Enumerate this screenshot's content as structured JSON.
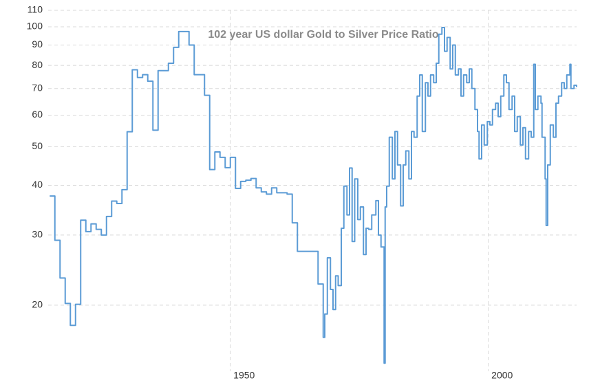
{
  "chart_data": {
    "type": "line",
    "title": "102 year US dollar Gold to Silver Price Ratio",
    "color": "#5b9bd5",
    "step": true,
    "log_y": true,
    "grid": true,
    "xlim": [
      1914.7,
      2017.1
    ],
    "xticks": [
      1950,
      2000
    ],
    "ylim": [
      13.65,
      110
    ],
    "yticks": [
      20,
      30,
      40,
      50,
      60,
      70,
      80,
      90,
      100,
      110
    ],
    "x": [
      1915,
      1916,
      1917,
      1918,
      1919,
      1920,
      1921,
      1922,
      1923,
      1924,
      1925,
      1926,
      1927,
      1928,
      1929,
      1930,
      1931,
      1932,
      1933,
      1934,
      1935,
      1936,
      1937,
      1938,
      1939,
      1940,
      1941,
      1942,
      1943,
      1944,
      1945,
      1946,
      1947,
      1948,
      1949,
      1950,
      1951,
      1952,
      1953,
      1954,
      1955,
      1956,
      1957,
      1958,
      1959,
      1960,
      1961,
      1962,
      1963,
      1964,
      1965,
      1966,
      1967,
      1968.0,
      1968.3,
      1968.8,
      1969.4,
      1969.9,
      1970.4,
      1970.9,
      1971.5,
      1972.0,
      1972.6,
      1973.1,
      1973.6,
      1974.1,
      1974.7,
      1975.2,
      1975.8,
      1976.3,
      1976.8,
      1977.4,
      1978.2,
      1978.7,
      1979.2,
      1979.8,
      1980.0,
      1980.3,
      1980.8,
      1981.4,
      1981.9,
      1982.4,
      1983.0,
      1983.5,
      1984.0,
      1984.6,
      1985.1,
      1985.6,
      1986.2,
      1986.7,
      1987.2,
      1987.8,
      1988.3,
      1988.8,
      1989.4,
      1989.9,
      1990.4,
      1991.0,
      1991.5,
      1992.0,
      1992.6,
      1993.1,
      1993.6,
      1994.2,
      1994.7,
      1995.2,
      1995.8,
      1996.3,
      1996.8,
      1997.4,
      1997.9,
      1998.2,
      1998.7,
      1999.2,
      1999.8,
      2000.3,
      2000.8,
      2001.4,
      2001.9,
      2002.4,
      2003.0,
      2003.5,
      2004.0,
      2004.6,
      2005.1,
      2005.6,
      2006.2,
      2006.7,
      2007.2,
      2007.8,
      2008.3,
      2008.8,
      2009.1,
      2009.6,
      2010.2,
      2010.4,
      2011.0,
      2011.2,
      2011.5,
      2012.0,
      2012.6,
      2013.1,
      2013.6,
      2014.2,
      2014.7,
      2015.2,
      2015.8,
      2016.0,
      2016.6,
      2017.1
    ],
    "values": [
      37.6,
      29.1,
      23.4,
      20.2,
      17.8,
      20.1,
      32.7,
      30.6,
      32.0,
      31.0,
      30.0,
      33.4,
      36.5,
      36.0,
      39.0,
      54.5,
      78,
      74.6,
      75.8,
      73,
      55,
      77.6,
      77.6,
      81,
      88.8,
      97.3,
      97.3,
      90,
      75.8,
      75.8,
      67.3,
      43.8,
      48.5,
      47,
      44.3,
      47,
      39.3,
      40.9,
      41.2,
      41.6,
      39.4,
      38.5,
      38.0,
      39.4,
      38.3,
      38.3,
      38.0,
      32.2,
      27.3,
      27.3,
      27.3,
      27.3,
      22.6,
      16.6,
      19,
      26.3,
      21.9,
      19.5,
      23.7,
      22.4,
      31.2,
      39.8,
      33.7,
      44.2,
      28.9,
      41.5,
      32.8,
      35.3,
      26.8,
      31.2,
      31,
      33.7,
      36.6,
      30,
      28,
      14.3,
      35.3,
      39.8,
      52.8,
      41.5,
      54.6,
      45,
      35.5,
      45,
      48.8,
      41.5,
      54.6,
      52.8,
      67,
      75.7,
      54.6,
      72.4,
      67,
      75.7,
      72.4,
      81,
      95.8,
      99.6,
      86.8,
      94,
      78.4,
      90,
      75.7,
      78.4,
      67,
      75.7,
      72.4,
      78.4,
      70,
      62,
      54.6,
      46.6,
      56.7,
      50.5,
      57.8,
      56.7,
      62,
      64.3,
      59.5,
      67,
      75.7,
      72.4,
      62,
      67,
      54.6,
      59.5,
      50.5,
      55.8,
      46.6,
      54.6,
      52.8,
      80.5,
      62,
      67,
      64.3,
      52.8,
      41.5,
      31.7,
      45,
      56.7,
      52.8,
      64.3,
      67,
      72.4,
      70,
      75.7,
      80.5,
      70,
      71.3,
      70.6
    ]
  }
}
